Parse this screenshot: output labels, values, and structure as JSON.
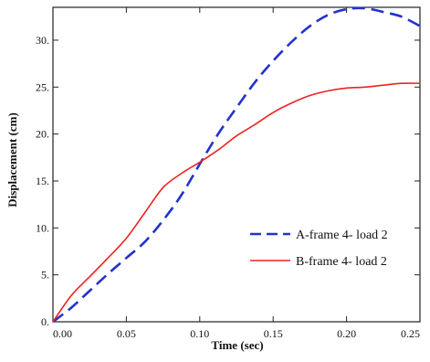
{
  "chart_data": {
    "type": "line",
    "title": "",
    "xlabel": "Time (sec)",
    "ylabel": "Displacement (cm)",
    "xlim": [
      0,
      0.25
    ],
    "ylim": [
      0,
      33.5
    ],
    "grid": false,
    "legend_position": "center-right",
    "x_ticks": [
      {
        "value": 0,
        "label": "0.00"
      },
      {
        "value": 0.05,
        "label": "0.05"
      },
      {
        "value": 0.1,
        "label": "0.10"
      },
      {
        "value": 0.15,
        "label": "0.15"
      },
      {
        "value": 0.2,
        "label": "0.20"
      },
      {
        "value": 0.25,
        "label": "0.25"
      }
    ],
    "y_ticks": [
      {
        "value": 0,
        "label": "0."
      },
      {
        "value": 5,
        "label": "5."
      },
      {
        "value": 10,
        "label": "10."
      },
      {
        "value": 15,
        "label": "15."
      },
      {
        "value": 20,
        "label": "20."
      },
      {
        "value": 25,
        "label": "25."
      },
      {
        "value": 30,
        "label": "30."
      }
    ],
    "series": [
      {
        "name": "A-frame 4- load 2",
        "color": "#2233cc",
        "style": "dashed",
        "x": [
          0,
          0.0125,
          0.025,
          0.0375,
          0.05,
          0.0625,
          0.075,
          0.0875,
          0.1,
          0.1125,
          0.125,
          0.1375,
          0.15,
          0.1625,
          0.175,
          0.1875,
          0.2,
          0.2125,
          0.225,
          0.2375,
          0.25
        ],
        "y": [
          0,
          1.5,
          3.3,
          5.1,
          6.8,
          8.5,
          10.8,
          13.5,
          16.8,
          20.0,
          22.8,
          25.5,
          27.8,
          29.8,
          31.5,
          32.7,
          33.3,
          33.4,
          33.0,
          32.5,
          31.5
        ]
      },
      {
        "name": "B-frame 4- load 2",
        "color": "#ee2222",
        "style": "solid",
        "x": [
          0,
          0.0125,
          0.025,
          0.0375,
          0.05,
          0.0625,
          0.075,
          0.0875,
          0.1,
          0.1125,
          0.125,
          0.1375,
          0.15,
          0.1625,
          0.175,
          0.1875,
          0.2,
          0.2125,
          0.225,
          0.2375,
          0.25
        ],
        "y": [
          0,
          2.8,
          4.8,
          6.8,
          8.9,
          11.6,
          14.3,
          15.8,
          17.0,
          18.3,
          19.8,
          21.0,
          22.3,
          23.3,
          24.1,
          24.6,
          24.9,
          25.0,
          25.2,
          25.4,
          25.4
        ]
      }
    ]
  }
}
